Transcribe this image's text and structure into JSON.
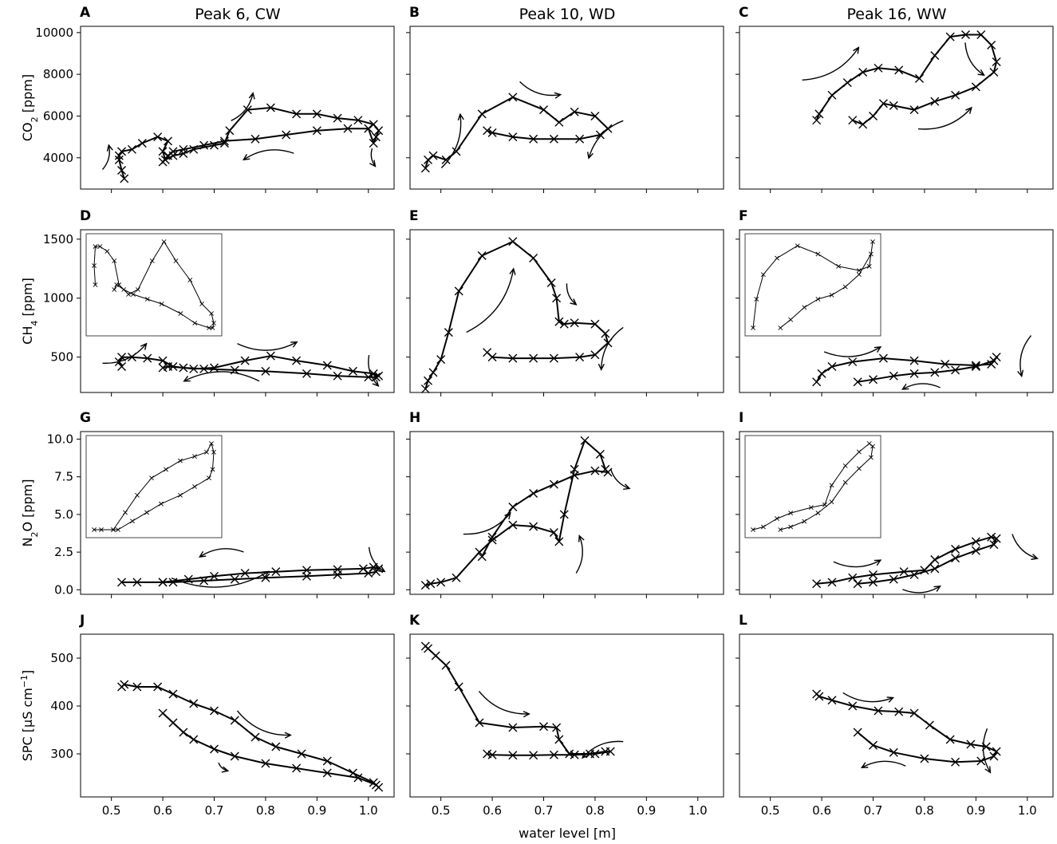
{
  "figure": {
    "column_titles": [
      "Peak 6, CW",
      "Peak 10, WD",
      "Peak 16, WW"
    ],
    "x_axis_label": "water level [m]",
    "row_y_labels": [
      {
        "main": "CO",
        "sub": "2",
        "rest": " [ppm]"
      },
      {
        "main": "CH",
        "sub": "4",
        "rest": " [ppm]"
      },
      {
        "main": "N",
        "sub": "2",
        "rest": "O [ppm]"
      },
      {
        "main": "SPC [µS cm",
        "sup": "−1",
        "rest": "]"
      }
    ],
    "x_ticks": {
      "panel_col_0": [
        "0.5",
        "0.6",
        "0.7",
        "0.8",
        "0.9",
        "1.0"
      ],
      "panel_col_1": [
        "0.5",
        "0.6",
        "0.7",
        "0.8",
        "0.9",
        "1.0"
      ],
      "panel_col_2": [
        "0.5",
        "0.6",
        "0.7",
        "0.8",
        "0.9",
        "1.0"
      ]
    },
    "y_ticks": {
      "CO2": [
        "4000",
        "6000",
        "8000",
        "10000"
      ],
      "CH4": [
        "500",
        "1000",
        "1500"
      ],
      "N2O": [
        "0.0",
        "2.5",
        "5.0",
        "7.5",
        "10.0"
      ],
      "SPC": [
        "300",
        "400",
        "500"
      ]
    }
  },
  "chart_data": [
    {
      "panel": "A",
      "type": "line",
      "marker": "x",
      "xlabel": "",
      "ylabel": "CO2 [ppm]",
      "title": "Peak 6, CW",
      "xlim": [
        0.44,
        1.05
      ],
      "ylim": [
        2500,
        10300
      ],
      "yticks": [
        4000,
        6000,
        8000,
        10000
      ],
      "x": [
        0.525,
        0.52,
        0.515,
        0.515,
        0.52,
        0.54,
        0.56,
        0.59,
        0.61,
        0.6,
        0.605,
        0.62,
        0.64,
        0.66,
        0.7,
        0.72,
        0.73,
        0.765,
        0.81,
        0.86,
        0.9,
        0.94,
        0.98,
        1.01,
        1.02,
        1.015,
        1.01,
        1.0,
        0.96,
        0.9,
        0.84,
        0.78,
        0.72,
        0.68,
        0.64,
        0.62,
        0.61,
        0.6
      ],
      "y": [
        3000,
        3400,
        3900,
        4100,
        4300,
        4400,
        4700,
        5000,
        4800,
        4300,
        3900,
        4100,
        4200,
        4400,
        4600,
        4700,
        5300,
        6300,
        6400,
        6100,
        6100,
        5900,
        5800,
        5600,
        5300,
        5000,
        4700,
        5400,
        5400,
        5300,
        5100,
        4900,
        4800,
        4600,
        4400,
        4300,
        4100,
        3800
      ],
      "inset": false
    },
    {
      "panel": "B",
      "type": "line",
      "marker": "x",
      "xlabel": "",
      "ylabel": "",
      "title": "Peak 10, WD",
      "xlim": [
        0.44,
        1.05
      ],
      "ylim": [
        2500,
        10300
      ],
      "yticks": [
        4000,
        6000,
        8000,
        10000
      ],
      "x": [
        0.47,
        0.475,
        0.485,
        0.51,
        0.53,
        0.58,
        0.64,
        0.7,
        0.73,
        0.76,
        0.8,
        0.825,
        0.81,
        0.77,
        0.72,
        0.68,
        0.64,
        0.6,
        0.59
      ],
      "y": [
        3500,
        3900,
        4100,
        3900,
        4300,
        6100,
        6900,
        6300,
        5700,
        6200,
        6000,
        5400,
        5100,
        4900,
        4900,
        4900,
        5000,
        5200,
        5300
      ],
      "inset": false
    },
    {
      "panel": "C",
      "type": "line",
      "marker": "x",
      "xlabel": "",
      "ylabel": "",
      "title": "Peak 16, WW",
      "xlim": [
        0.44,
        1.05
      ],
      "ylim": [
        2500,
        10300
      ],
      "yticks": [
        4000,
        6000,
        8000,
        10000
      ],
      "x": [
        0.59,
        0.595,
        0.62,
        0.65,
        0.68,
        0.71,
        0.75,
        0.79,
        0.82,
        0.85,
        0.88,
        0.91,
        0.93,
        0.94,
        0.935,
        0.9,
        0.86,
        0.82,
        0.78,
        0.74,
        0.72,
        0.7,
        0.68,
        0.66
      ],
      "y": [
        5800,
        6100,
        7000,
        7600,
        8100,
        8300,
        8200,
        7800,
        8900,
        9800,
        9900,
        9900,
        9400,
        8600,
        8100,
        7400,
        7000,
        6700,
        6300,
        6500,
        6600,
        6000,
        5600,
        5800
      ],
      "inset": false
    },
    {
      "panel": "D",
      "type": "line",
      "marker": "x",
      "xlabel": "",
      "ylabel": "CH4 [ppm]",
      "title": "",
      "xlim": [
        0.44,
        1.05
      ],
      "ylim": [
        200,
        1580
      ],
      "yticks": [
        500,
        1000,
        1500
      ],
      "x": [
        0.52,
        0.515,
        0.52,
        0.54,
        0.57,
        0.6,
        0.62,
        0.66,
        0.7,
        0.76,
        0.81,
        0.86,
        0.92,
        0.97,
        1.01,
        1.02,
        1.015,
        1.0,
        0.94,
        0.88,
        0.8,
        0.74,
        0.68,
        0.64,
        0.61,
        0.6
      ],
      "y": [
        420,
        460,
        500,
        500,
        490,
        470,
        420,
        400,
        410,
        470,
        510,
        470,
        430,
        380,
        360,
        340,
        330,
        330,
        340,
        360,
        380,
        390,
        400,
        410,
        420,
        410
      ],
      "inset": true,
      "inset_note": "zoomed view of the same series"
    },
    {
      "panel": "E",
      "type": "line",
      "marker": "x",
      "xlabel": "",
      "ylabel": "",
      "title": "",
      "xlim": [
        0.44,
        1.05
      ],
      "ylim": [
        200,
        1580
      ],
      "yticks": [
        500,
        1000,
        1500
      ],
      "x": [
        0.47,
        0.475,
        0.485,
        0.5,
        0.515,
        0.535,
        0.58,
        0.64,
        0.68,
        0.715,
        0.725,
        0.73,
        0.74,
        0.76,
        0.8,
        0.82,
        0.825,
        0.8,
        0.77,
        0.72,
        0.68,
        0.64,
        0.6,
        0.59
      ],
      "y": [
        230,
        300,
        370,
        480,
        710,
        1060,
        1360,
        1480,
        1340,
        1130,
        1000,
        800,
        780,
        790,
        780,
        700,
        620,
        520,
        500,
        490,
        490,
        490,
        500,
        540
      ],
      "inset": false
    },
    {
      "panel": "F",
      "type": "line",
      "marker": "x",
      "xlabel": "",
      "ylabel": "",
      "title": "",
      "xlim": [
        0.44,
        1.05
      ],
      "ylim": [
        200,
        1580
      ],
      "yticks": [
        500,
        1000,
        1500
      ],
      "x": [
        0.59,
        0.6,
        0.62,
        0.66,
        0.72,
        0.78,
        0.84,
        0.9,
        0.93,
        0.94,
        0.935,
        0.9,
        0.86,
        0.82,
        0.78,
        0.74,
        0.7,
        0.67
      ],
      "y": [
        290,
        360,
        420,
        460,
        490,
        470,
        440,
        430,
        440,
        500,
        470,
        420,
        390,
        370,
        360,
        340,
        310,
        290
      ],
      "inset": true,
      "inset_note": "zoomed view of the same series"
    },
    {
      "panel": "G",
      "type": "line",
      "marker": "x",
      "xlabel": "",
      "ylabel": "N2O [ppm]",
      "title": "",
      "xlim": [
        0.44,
        1.05
      ],
      "ylim": [
        -0.3,
        10.5
      ],
      "yticks": [
        0.0,
        2.5,
        5.0,
        7.5,
        10.0
      ],
      "x": [
        0.52,
        0.55,
        0.6,
        0.65,
        0.7,
        0.76,
        0.82,
        0.88,
        0.94,
        0.99,
        1.01,
        1.02,
        1.015,
        1.0,
        0.94,
        0.88,
        0.8,
        0.74,
        0.68,
        0.62,
        0.6
      ],
      "y": [
        0.5,
        0.5,
        0.5,
        0.7,
        0.9,
        1.1,
        1.2,
        1.3,
        1.35,
        1.4,
        1.5,
        1.4,
        1.2,
        1.1,
        1.0,
        0.9,
        0.8,
        0.7,
        0.6,
        0.5,
        0.5
      ],
      "inset": true,
      "inset_note": "zoomed view of the same series"
    },
    {
      "panel": "H",
      "type": "line",
      "marker": "x",
      "xlabel": "",
      "ylabel": "",
      "title": "",
      "xlim": [
        0.44,
        1.05
      ],
      "ylim": [
        -0.3,
        10.5
      ],
      "yticks": [
        0.0,
        2.5,
        5.0,
        7.5,
        10.0
      ],
      "x": [
        0.47,
        0.48,
        0.5,
        0.53,
        0.575,
        0.6,
        0.64,
        0.68,
        0.72,
        0.73,
        0.74,
        0.76,
        0.78,
        0.81,
        0.82,
        0.825,
        0.8,
        0.76,
        0.72,
        0.68,
        0.64,
        0.6,
        0.58
      ],
      "y": [
        0.3,
        0.4,
        0.5,
        0.8,
        2.5,
        3.3,
        4.3,
        4.2,
        3.8,
        3.2,
        5.0,
        8.0,
        9.9,
        9.0,
        8.0,
        7.8,
        7.9,
        7.6,
        7.0,
        6.4,
        5.5,
        3.5,
        2.2
      ],
      "inset": false
    },
    {
      "panel": "I",
      "type": "line",
      "marker": "x",
      "xlabel": "",
      "ylabel": "",
      "title": "",
      "xlim": [
        0.44,
        1.05
      ],
      "ylim": [
        -0.3,
        10.5
      ],
      "yticks": [
        0.0,
        2.5,
        5.0,
        7.5,
        10.0
      ],
      "x": [
        0.59,
        0.62,
        0.66,
        0.7,
        0.76,
        0.8,
        0.82,
        0.86,
        0.9,
        0.93,
        0.94,
        0.935,
        0.9,
        0.86,
        0.82,
        0.78,
        0.74,
        0.7,
        0.67
      ],
      "y": [
        0.4,
        0.5,
        0.8,
        1.0,
        1.2,
        1.3,
        2.0,
        2.7,
        3.2,
        3.5,
        3.4,
        3.0,
        2.6,
        2.1,
        1.4,
        1.0,
        0.7,
        0.5,
        0.4
      ],
      "inset": true,
      "inset_note": "zoomed view of the same series"
    },
    {
      "panel": "J",
      "type": "line",
      "marker": "x",
      "xlabel": "",
      "ylabel": "SPC [µS cm−1]",
      "title": "",
      "xlim": [
        0.44,
        1.05
      ],
      "ylim": [
        210,
        550
      ],
      "yticks": [
        300,
        400,
        500
      ],
      "x": [
        0.52,
        0.525,
        0.55,
        0.59,
        0.62,
        0.66,
        0.7,
        0.74,
        0.78,
        0.82,
        0.87,
        0.92,
        0.97,
        1.01,
        1.02,
        1.015,
        0.98,
        0.92,
        0.86,
        0.8,
        0.74,
        0.7,
        0.66,
        0.64,
        0.62,
        0.6
      ],
      "y": [
        440,
        445,
        440,
        440,
        425,
        405,
        390,
        370,
        335,
        315,
        300,
        285,
        260,
        240,
        230,
        235,
        250,
        260,
        270,
        280,
        295,
        310,
        330,
        345,
        365,
        385
      ],
      "inset": false
    },
    {
      "panel": "K",
      "type": "line",
      "marker": "x",
      "xlabel": "water level [m]",
      "ylabel": "",
      "title": "",
      "xlim": [
        0.44,
        1.05
      ],
      "ylim": [
        210,
        550
      ],
      "yticks": [
        300,
        400,
        500
      ],
      "x": [
        0.47,
        0.475,
        0.49,
        0.51,
        0.535,
        0.575,
        0.64,
        0.7,
        0.725,
        0.73,
        0.75,
        0.79,
        0.82,
        0.83,
        0.8,
        0.76,
        0.72,
        0.68,
        0.64,
        0.6,
        0.59
      ],
      "y": [
        525,
        520,
        505,
        485,
        440,
        365,
        355,
        357,
        355,
        330,
        300,
        300,
        305,
        305,
        300,
        298,
        298,
        297,
        297,
        298,
        300
      ],
      "inset": false
    },
    {
      "panel": "L",
      "type": "line",
      "marker": "x",
      "xlabel": "",
      "ylabel": "",
      "title": "",
      "xlim": [
        0.44,
        1.05
      ],
      "ylim": [
        210,
        550
      ],
      "yticks": [
        300,
        400,
        500
      ],
      "x": [
        0.59,
        0.595,
        0.62,
        0.66,
        0.71,
        0.75,
        0.78,
        0.81,
        0.85,
        0.89,
        0.92,
        0.94,
        0.935,
        0.91,
        0.86,
        0.8,
        0.74,
        0.7,
        0.67
      ],
      "y": [
        425,
        420,
        412,
        400,
        390,
        388,
        385,
        360,
        330,
        320,
        315,
        305,
        295,
        285,
        283,
        290,
        303,
        318,
        345
      ],
      "inset": false
    }
  ]
}
